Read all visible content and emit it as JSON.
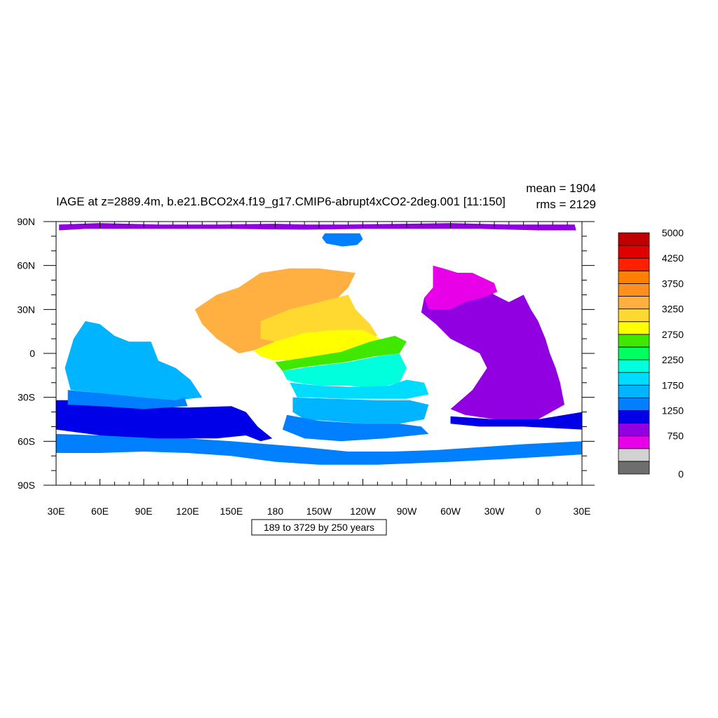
{
  "title": "IAGE at z=2889.4m, b.e21.BCO2x4.f19_g17.CMIP6-abrupt4xCO2-2deg.001 [11:150]",
  "stats": {
    "mean": "mean = 1904",
    "rms": "rms = 2129"
  },
  "footnote": "189 to 3729 by 250 years",
  "colors": {
    "land": "#ffffff",
    "ocean_default": "#0080ff"
  },
  "chart_data": {
    "type": "heatmap",
    "projection": "cylindrical-equidistant",
    "variable": "IAGE",
    "depth": "z=2889.4m",
    "units": "years",
    "x_ticks": [
      "30E",
      "60E",
      "90E",
      "120E",
      "150E",
      "180",
      "150W",
      "120W",
      "90W",
      "60W",
      "30W",
      "0",
      "30E"
    ],
    "y_ticks": [
      "90N",
      "60N",
      "30N",
      "0",
      "30S",
      "60S",
      "90S"
    ],
    "xlim": [
      30,
      390
    ],
    "ylim": [
      -90,
      90
    ],
    "contour_levels": {
      "min": 189,
      "max": 3729,
      "interval": 250
    },
    "colorbar": {
      "colors": [
        "#6e6e6e",
        "#d2d2d2",
        "#e800e8",
        "#9000e0",
        "#0000e8",
        "#0080ff",
        "#00b4ff",
        "#00dcff",
        "#00ffdc",
        "#00ff60",
        "#40e800",
        "#ffff00",
        "#ffd830",
        "#ffb040",
        "#ff9020",
        "#ff8000",
        "#ff2000",
        "#e00000",
        "#c00000"
      ],
      "labels": [
        {
          "value": "0",
          "pos": 0
        },
        {
          "value": "750",
          "pos": 3
        },
        {
          "value": "1250",
          "pos": 5
        },
        {
          "value": "1750",
          "pos": 7
        },
        {
          "value": "2250",
          "pos": 9
        },
        {
          "value": "2750",
          "pos": 11
        },
        {
          "value": "3250",
          "pos": 13
        },
        {
          "value": "3750",
          "pos": 15
        },
        {
          "value": "4250",
          "pos": 17
        },
        {
          "value": "5000",
          "pos": 19
        }
      ]
    },
    "regions": [
      {
        "name": "arctic-ring",
        "color": "#9000e0",
        "lonlat": [
          [
            32,
            88
          ],
          [
            60,
            89
          ],
          [
            100,
            88
          ],
          [
            140,
            88
          ],
          [
            180,
            88.5
          ],
          [
            200,
            88
          ],
          [
            230,
            88
          ],
          [
            270,
            88.5
          ],
          [
            300,
            89
          ],
          [
            340,
            88
          ],
          [
            385,
            88
          ],
          [
            386,
            84
          ],
          [
            360,
            84
          ],
          [
            320,
            85
          ],
          [
            290,
            85
          ],
          [
            240,
            85
          ],
          [
            200,
            84.5
          ],
          [
            150,
            85
          ],
          [
            110,
            85
          ],
          [
            80,
            85
          ],
          [
            50,
            85
          ],
          [
            32,
            84
          ]
        ]
      },
      {
        "name": "arctic-basin-blue",
        "color": "#0080ff",
        "lonlat": [
          [
            214,
            82
          ],
          [
            238,
            82
          ],
          [
            240,
            78
          ],
          [
            236,
            74
          ],
          [
            226,
            73
          ],
          [
            215,
            75
          ],
          [
            212,
            79
          ]
        ]
      },
      {
        "name": "south-ring-deep",
        "color": "#0080ff",
        "lonlat": [
          [
            30,
            -55
          ],
          [
            60,
            -56
          ],
          [
            90,
            -57
          ],
          [
            120,
            -58
          ],
          [
            150,
            -60
          ],
          [
            175,
            -62
          ],
          [
            200,
            -64
          ],
          [
            230,
            -67
          ],
          [
            260,
            -67
          ],
          [
            290,
            -66
          ],
          [
            320,
            -64
          ],
          [
            350,
            -62
          ],
          [
            390,
            -60
          ],
          [
            390,
            -69
          ],
          [
            340,
            -72
          ],
          [
            300,
            -74
          ],
          [
            250,
            -76
          ],
          [
            210,
            -76
          ],
          [
            180,
            -74
          ],
          [
            150,
            -70
          ],
          [
            120,
            -68
          ],
          [
            90,
            -67
          ],
          [
            60,
            -68
          ],
          [
            30,
            -68
          ]
        ]
      },
      {
        "name": "indian-deep-blue",
        "color": "#0000e8",
        "lonlat": [
          [
            30,
            -32
          ],
          [
            30,
            -52
          ],
          [
            60,
            -56
          ],
          [
            100,
            -58
          ],
          [
            140,
            -58
          ],
          [
            160,
            -56
          ],
          [
            170,
            -60
          ],
          [
            178,
            -58
          ],
          [
            168,
            -50
          ],
          [
            160,
            -40
          ],
          [
            150,
            -36
          ],
          [
            120,
            -37
          ],
          [
            90,
            -36
          ],
          [
            60,
            -34
          ],
          [
            40,
            -32
          ]
        ]
      },
      {
        "name": "indian-light",
        "color": "#00b4ff",
        "lonlat": [
          [
            50,
            22
          ],
          [
            60,
            20
          ],
          [
            70,
            12
          ],
          [
            80,
            8
          ],
          [
            95,
            8
          ],
          [
            100,
            -5
          ],
          [
            112,
            -10
          ],
          [
            122,
            -18
          ],
          [
            130,
            -30
          ],
          [
            112,
            -32
          ],
          [
            90,
            -30
          ],
          [
            60,
            -27
          ],
          [
            40,
            -25
          ],
          [
            36,
            -10
          ],
          [
            42,
            10
          ]
        ]
      },
      {
        "name": "indian-mid",
        "color": "#0080ff",
        "lonlat": [
          [
            38,
            -25
          ],
          [
            60,
            -27
          ],
          [
            90,
            -30
          ],
          [
            112,
            -32
          ],
          [
            118,
            -30
          ],
          [
            120,
            -36
          ],
          [
            90,
            -38
          ],
          [
            60,
            -36
          ],
          [
            38,
            -35
          ]
        ]
      },
      {
        "name": "pacific-orange",
        "color": "#ffb040",
        "lonlat": [
          [
            140,
            40
          ],
          [
            155,
            45
          ],
          [
            170,
            55
          ],
          [
            190,
            58
          ],
          [
            210,
            58
          ],
          [
            235,
            55
          ],
          [
            230,
            45
          ],
          [
            220,
            35
          ],
          [
            210,
            25
          ],
          [
            195,
            15
          ],
          [
            180,
            8
          ],
          [
            165,
            2
          ],
          [
            155,
            0
          ],
          [
            140,
            10
          ],
          [
            130,
            20
          ],
          [
            125,
            30
          ]
        ]
      },
      {
        "name": "pacific-yellow-orange",
        "color": "#ffd830",
        "lonlat": [
          [
            170,
            22
          ],
          [
            190,
            30
          ],
          [
            210,
            35
          ],
          [
            230,
            40
          ],
          [
            235,
            30
          ],
          [
            245,
            20
          ],
          [
            250,
            12
          ],
          [
            235,
            8
          ],
          [
            215,
            10
          ],
          [
            195,
            12
          ],
          [
            180,
            8
          ],
          [
            170,
            10
          ]
        ]
      },
      {
        "name": "pacific-yellow",
        "color": "#ffff00",
        "lonlat": [
          [
            165,
            2
          ],
          [
            180,
            8
          ],
          [
            200,
            14
          ],
          [
            220,
            16
          ],
          [
            240,
            16
          ],
          [
            252,
            10
          ],
          [
            250,
            4
          ],
          [
            235,
            0
          ],
          [
            215,
            -2
          ],
          [
            195,
            -4
          ],
          [
            180,
            -5
          ],
          [
            170,
            -2
          ]
        ]
      },
      {
        "name": "pacific-green",
        "color": "#40e800",
        "lonlat": [
          [
            180,
            -6
          ],
          [
            200,
            -3
          ],
          [
            225,
            1
          ],
          [
            245,
            8
          ],
          [
            262,
            12
          ],
          [
            270,
            8
          ],
          [
            265,
            0
          ],
          [
            248,
            -2
          ],
          [
            228,
            -6
          ],
          [
            210,
            -8
          ],
          [
            195,
            -10
          ],
          [
            185,
            -12
          ]
        ]
      },
      {
        "name": "pacific-aqua",
        "color": "#00ffdc",
        "lonlat": [
          [
            185,
            -12
          ],
          [
            205,
            -9
          ],
          [
            230,
            -6
          ],
          [
            250,
            -2
          ],
          [
            265,
            0
          ],
          [
            270,
            -10
          ],
          [
            265,
            -20
          ],
          [
            248,
            -24
          ],
          [
            230,
            -22
          ],
          [
            210,
            -22
          ],
          [
            195,
            -20
          ],
          [
            188,
            -18
          ]
        ]
      },
      {
        "name": "pacific-cyan",
        "color": "#00dcff",
        "lonlat": [
          [
            190,
            -20
          ],
          [
            210,
            -22
          ],
          [
            235,
            -23
          ],
          [
            258,
            -22
          ],
          [
            270,
            -18
          ],
          [
            282,
            -20
          ],
          [
            285,
            -28
          ],
          [
            270,
            -31
          ],
          [
            250,
            -31
          ],
          [
            225,
            -31
          ],
          [
            205,
            -30
          ],
          [
            195,
            -30
          ]
        ]
      },
      {
        "name": "pacific-lightblue",
        "color": "#00b4ff",
        "lonlat": [
          [
            192,
            -30
          ],
          [
            220,
            -31
          ],
          [
            250,
            -32
          ],
          [
            272,
            -32
          ],
          [
            285,
            -35
          ],
          [
            282,
            -45
          ],
          [
            265,
            -48
          ],
          [
            240,
            -48
          ],
          [
            215,
            -46
          ],
          [
            200,
            -45
          ],
          [
            192,
            -40
          ]
        ]
      },
      {
        "name": "pacific-south",
        "color": "#0080ff",
        "lonlat": [
          [
            188,
            -42
          ],
          [
            210,
            -46
          ],
          [
            240,
            -48
          ],
          [
            265,
            -48
          ],
          [
            280,
            -50
          ],
          [
            285,
            -55
          ],
          [
            255,
            -58
          ],
          [
            225,
            -60
          ],
          [
            200,
            -58
          ],
          [
            185,
            -52
          ]
        ]
      },
      {
        "name": "atlantic-purple",
        "color": "#9000e0",
        "lonlat": [
          [
            290,
            58
          ],
          [
            300,
            55
          ],
          [
            312,
            55
          ],
          [
            320,
            50
          ],
          [
            325,
            45
          ],
          [
            330,
            40
          ],
          [
            340,
            35
          ],
          [
            350,
            40
          ],
          [
            355,
            30
          ],
          [
            360,
            22
          ],
          [
            365,
            10
          ],
          [
            368,
            0
          ],
          [
            372,
            -10
          ],
          [
            375,
            -20
          ],
          [
            378,
            -35
          ],
          [
            360,
            -45
          ],
          [
            330,
            -45
          ],
          [
            310,
            -42
          ],
          [
            300,
            -38
          ],
          [
            315,
            -25
          ],
          [
            325,
            -10
          ],
          [
            320,
            0
          ],
          [
            300,
            10
          ],
          [
            290,
            20
          ],
          [
            280,
            28
          ],
          [
            282,
            38
          ],
          [
            290,
            45
          ]
        ]
      },
      {
        "name": "atlantic-magenta-north",
        "color": "#e800e8",
        "lonlat": [
          [
            288,
            60
          ],
          [
            295,
            58
          ],
          [
            305,
            55
          ],
          [
            315,
            55
          ],
          [
            330,
            48
          ],
          [
            332,
            42
          ],
          [
            322,
            38
          ],
          [
            310,
            35
          ],
          [
            300,
            30
          ],
          [
            285,
            30
          ],
          [
            282,
            38
          ],
          [
            288,
            45
          ]
        ]
      },
      {
        "name": "atlantic-south-blue",
        "color": "#0000e8",
        "lonlat": [
          [
            300,
            -43
          ],
          [
            330,
            -45
          ],
          [
            360,
            -45
          ],
          [
            390,
            -40
          ],
          [
            390,
            -52
          ],
          [
            350,
            -50
          ],
          [
            320,
            -50
          ],
          [
            300,
            -48
          ]
        ]
      }
    ]
  }
}
